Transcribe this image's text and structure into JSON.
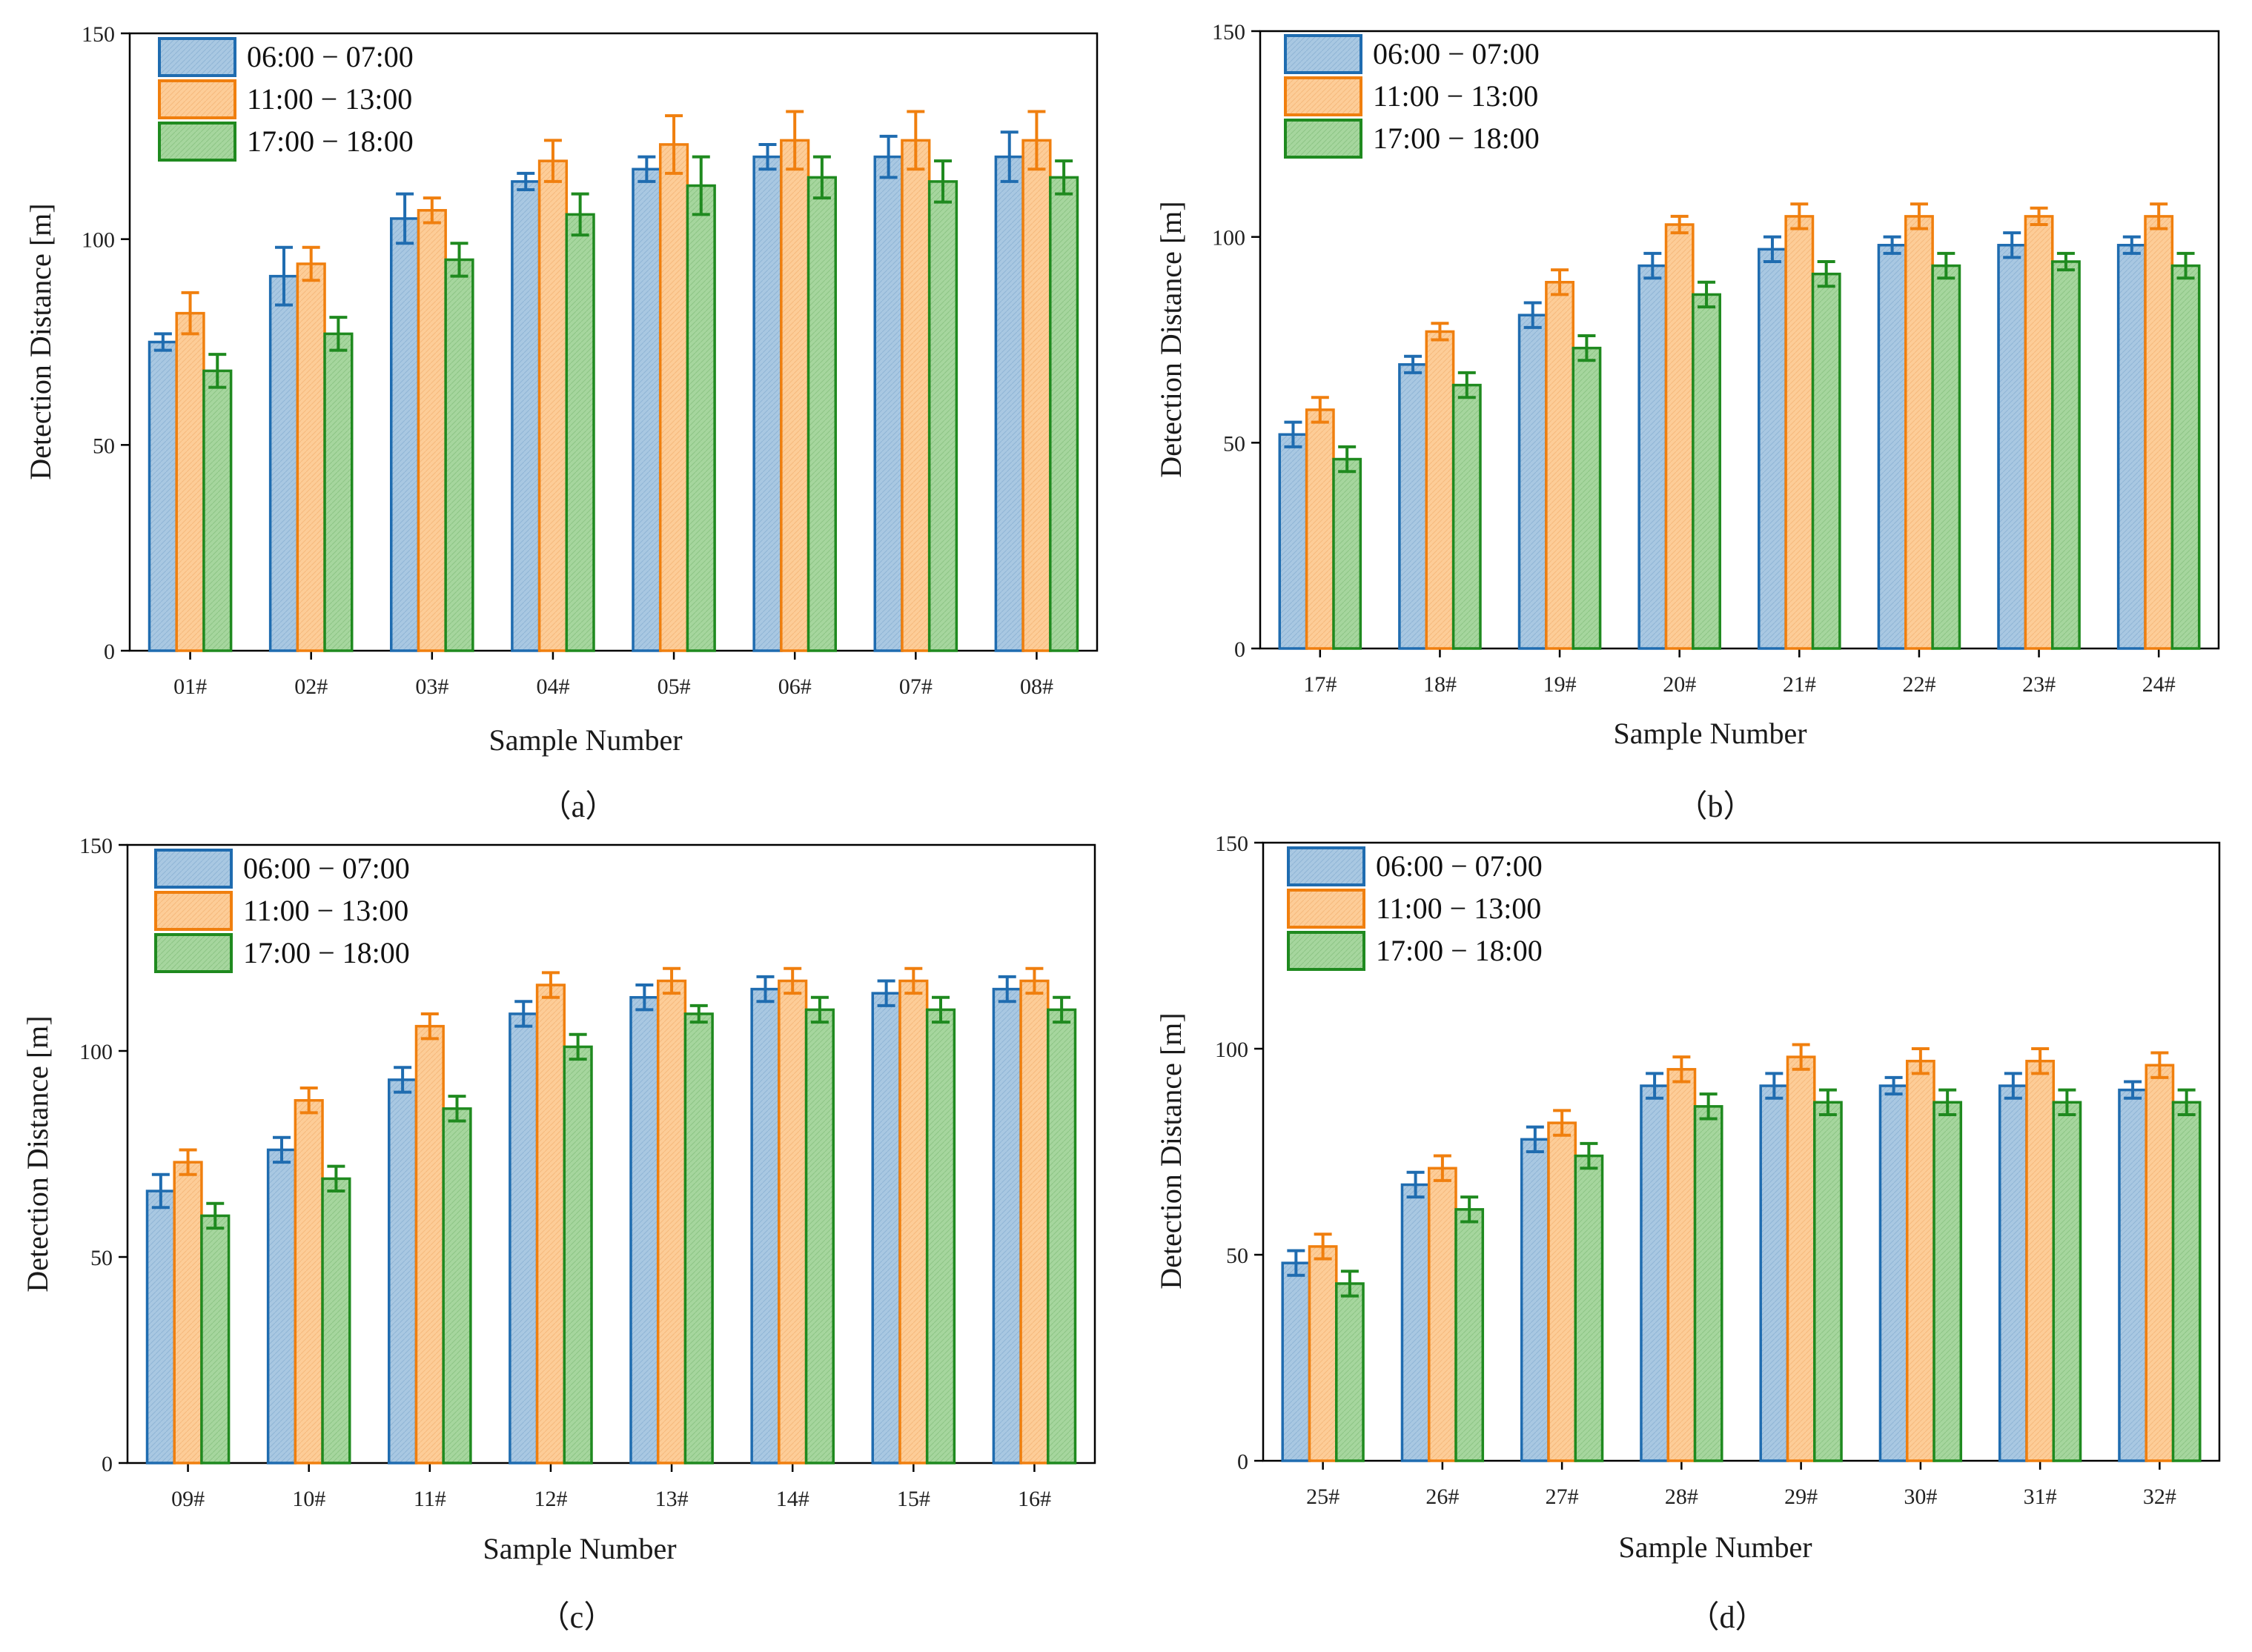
{
  "figure": {
    "colors": {
      "series": [
        {
          "fill": "#a9c8e2",
          "stroke": "#1f6cb0"
        },
        {
          "fill": "#fdcd98",
          "stroke": "#f07f0e"
        },
        {
          "fill": "#a6d69e",
          "stroke": "#1f8a1f"
        }
      ]
    }
  },
  "chart_data": [
    {
      "type": "bar",
      "panel_label": "（a）",
      "xlabel": "Sample Number",
      "ylabel": "Detection Distance [m]",
      "ylim": [
        0,
        150
      ],
      "yticks": [
        "0",
        "50",
        "100",
        "150"
      ],
      "legend_position": "top-left",
      "categories": [
        "01#",
        "02#",
        "03#",
        "04#",
        "05#",
        "06#",
        "07#",
        "08#"
      ],
      "series": [
        {
          "name": "06:00 − 07:00",
          "values": [
            75,
            91,
            105,
            114,
            117,
            120,
            120,
            120
          ],
          "errors": [
            2,
            7,
            6,
            2,
            3,
            3,
            5,
            6
          ]
        },
        {
          "name": "11:00 − 13:00",
          "values": [
            82,
            94,
            107,
            119,
            123,
            124,
            124,
            124
          ],
          "errors": [
            5,
            4,
            3,
            5,
            7,
            7,
            7,
            7
          ]
        },
        {
          "name": "17:00 − 18:00",
          "values": [
            68,
            77,
            95,
            106,
            113,
            115,
            114,
            115
          ],
          "errors": [
            4,
            4,
            4,
            5,
            7,
            5,
            5,
            4
          ]
        }
      ]
    },
    {
      "type": "bar",
      "panel_label": "（b）",
      "xlabel": "Sample Number",
      "ylabel": "Detection Distance [m]",
      "ylim": [
        0,
        150
      ],
      "yticks": [
        "0",
        "50",
        "100",
        "150"
      ],
      "legend_position": "top-left",
      "categories": [
        "17#",
        "18#",
        "19#",
        "20#",
        "21#",
        "22#",
        "23#",
        "24#"
      ],
      "series": [
        {
          "name": "06:00 − 07:00",
          "values": [
            52,
            69,
            81,
            93,
            97,
            98,
            98,
            98
          ],
          "errors": [
            3,
            2,
            3,
            3,
            3,
            2,
            3,
            2
          ]
        },
        {
          "name": "11:00 − 13:00",
          "values": [
            58,
            77,
            89,
            103,
            105,
            105,
            105,
            105
          ],
          "errors": [
            3,
            2,
            3,
            2,
            3,
            3,
            2,
            3
          ]
        },
        {
          "name": "17:00 − 18:00",
          "values": [
            46,
            64,
            73,
            86,
            91,
            93,
            94,
            93
          ],
          "errors": [
            3,
            3,
            3,
            3,
            3,
            3,
            2,
            3
          ]
        }
      ]
    },
    {
      "type": "bar",
      "panel_label": "（c）",
      "xlabel": "Sample Number",
      "ylabel": "Detection Distance [m]",
      "ylim": [
        0,
        150
      ],
      "yticks": [
        "0",
        "50",
        "100",
        "150"
      ],
      "legend_position": "top-left",
      "categories": [
        "09#",
        "10#",
        "11#",
        "12#",
        "13#",
        "14#",
        "15#",
        "16#"
      ],
      "series": [
        {
          "name": "06:00 − 07:00",
          "values": [
            66,
            76,
            93,
            109,
            113,
            115,
            114,
            115
          ],
          "errors": [
            4,
            3,
            3,
            3,
            3,
            3,
            3,
            3
          ]
        },
        {
          "name": "11:00 − 13:00",
          "values": [
            73,
            88,
            106,
            116,
            117,
            117,
            117,
            117
          ],
          "errors": [
            3,
            3,
            3,
            3,
            3,
            3,
            3,
            3
          ]
        },
        {
          "name": "17:00 − 18:00",
          "values": [
            60,
            69,
            86,
            101,
            109,
            110,
            110,
            110
          ],
          "errors": [
            3,
            3,
            3,
            3,
            2,
            3,
            3,
            3
          ]
        }
      ]
    },
    {
      "type": "bar",
      "panel_label": "（d）",
      "xlabel": "Sample Number",
      "ylabel": "Detection Distance [m]",
      "ylim": [
        0,
        150
      ],
      "yticks": [
        "0",
        "50",
        "100",
        "150"
      ],
      "legend_position": "top-left",
      "categories": [
        "25#",
        "26#",
        "27#",
        "28#",
        "29#",
        "30#",
        "31#",
        "32#"
      ],
      "series": [
        {
          "name": "06:00 − 07:00",
          "values": [
            48,
            67,
            78,
            91,
            91,
            91,
            91,
            90
          ],
          "errors": [
            3,
            3,
            3,
            3,
            3,
            2,
            3,
            2
          ]
        },
        {
          "name": "11:00 − 13:00",
          "values": [
            52,
            71,
            82,
            95,
            98,
            97,
            97,
            96
          ],
          "errors": [
            3,
            3,
            3,
            3,
            3,
            3,
            3,
            3
          ]
        },
        {
          "name": "17:00 − 18:00",
          "values": [
            43,
            61,
            74,
            86,
            87,
            87,
            87,
            87
          ],
          "errors": [
            3,
            3,
            3,
            3,
            3,
            3,
            3,
            3
          ]
        }
      ]
    }
  ]
}
